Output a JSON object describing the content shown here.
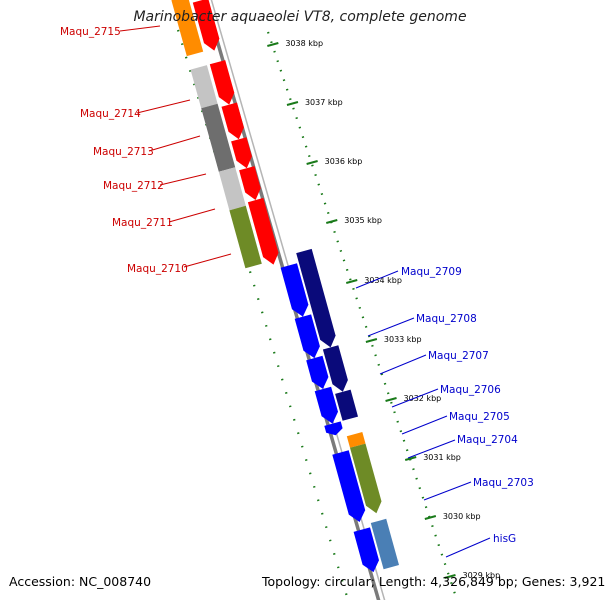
{
  "title": "Marinobacter aquaeolei VT8, complete genome",
  "footer": {
    "accession": "Accession: NC_008740",
    "summary": "Topology: circular; Length: 4,326,849 bp; Genes: 3,921"
  },
  "colors": {
    "forward_gene": "#ff0000",
    "reverse_gene": "#0000ff",
    "dark_reverse": "#0a0a7a",
    "gray_light": "#c4c4c4",
    "gray_dark": "#6e6e6e",
    "green_feature": "#6e8b26",
    "orange_feature": "#ff8c00",
    "steel_feature": "#4a7fb5",
    "tick_green": "#1a7a1a",
    "backbone": "#7a7a7a"
  },
  "scale_labels": [
    "3038 kbp",
    "3037 kbp",
    "3036 kbp",
    "3035 kbp",
    "3034 kbp",
    "3033 kbp",
    "3032 kbp",
    "3031 kbp",
    "3030 kbp",
    "3029 kbp"
  ],
  "genes_left": [
    {
      "name": "Maqu_2715",
      "color": "#cc0000"
    },
    {
      "name": "Maqu_2714",
      "color": "#cc0000"
    },
    {
      "name": "Maqu_2713",
      "color": "#cc0000"
    },
    {
      "name": "Maqu_2712",
      "color": "#cc0000"
    },
    {
      "name": "Maqu_2711",
      "color": "#cc0000"
    },
    {
      "name": "Maqu_2710",
      "color": "#cc0000"
    }
  ],
  "genes_right": [
    {
      "name": "Maqu_2709",
      "color": "#0000cc"
    },
    {
      "name": "Maqu_2708",
      "color": "#0000cc"
    },
    {
      "name": "Maqu_2707",
      "color": "#0000cc"
    },
    {
      "name": "Maqu_2706",
      "color": "#0000cc"
    },
    {
      "name": "Maqu_2705",
      "color": "#0000cc"
    },
    {
      "name": "Maqu_2704",
      "color": "#0000cc"
    },
    {
      "name": "Maqu_2703",
      "color": "#0000cc"
    },
    {
      "name": "hisG",
      "color": "#0000cc"
    }
  ]
}
